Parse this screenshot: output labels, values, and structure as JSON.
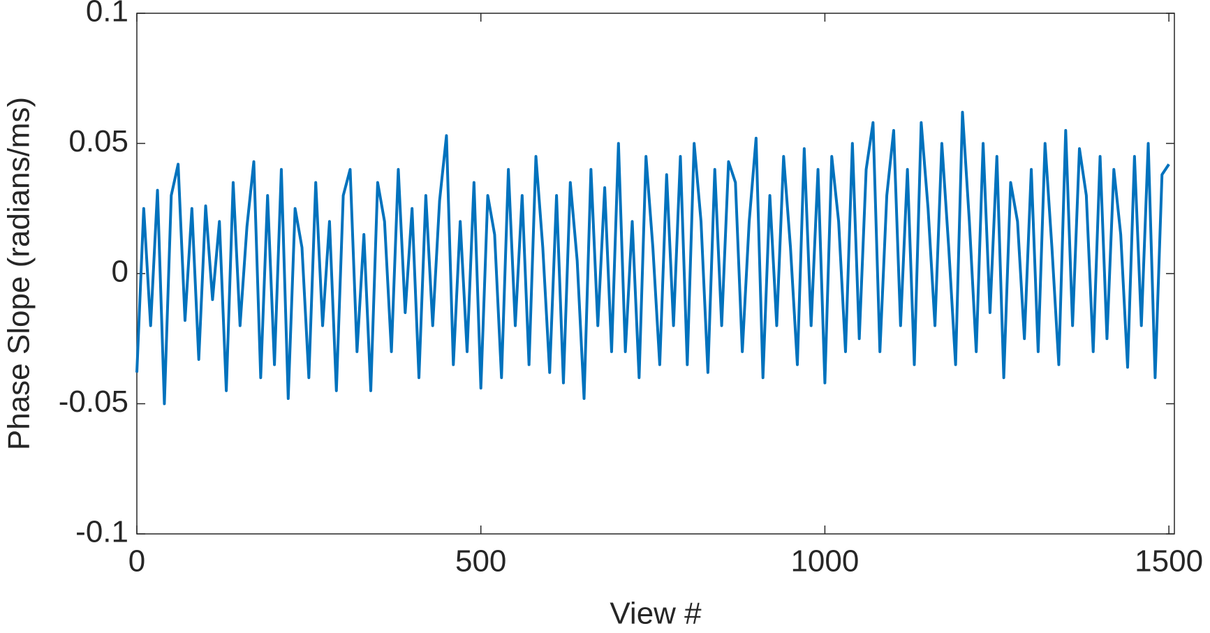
{
  "chart_data": {
    "type": "line",
    "x_label": "View #",
    "y_label": "Phase Slope (radians/ms)",
    "x": [
      0,
      10,
      20,
      30,
      40,
      50,
      60,
      70,
      80,
      90,
      100,
      110,
      120,
      130,
      140,
      150,
      160,
      170,
      180,
      190,
      200,
      210,
      220,
      230,
      240,
      250,
      260,
      270,
      280,
      290,
      300,
      310,
      320,
      330,
      340,
      350,
      360,
      370,
      380,
      390,
      400,
      410,
      420,
      430,
      440,
      450,
      460,
      470,
      480,
      490,
      500,
      510,
      520,
      530,
      540,
      550,
      560,
      570,
      580,
      590,
      600,
      610,
      620,
      630,
      640,
      650,
      660,
      670,
      680,
      690,
      700,
      710,
      720,
      730,
      740,
      750,
      760,
      770,
      780,
      790,
      800,
      810,
      820,
      830,
      840,
      850,
      860,
      870,
      880,
      890,
      900,
      910,
      920,
      930,
      940,
      950,
      960,
      970,
      980,
      990,
      1000,
      1010,
      1020,
      1030,
      1040,
      1050,
      1060,
      1070,
      1080,
      1090,
      1100,
      1110,
      1120,
      1130,
      1140,
      1150,
      1160,
      1170,
      1180,
      1190,
      1200,
      1210,
      1220,
      1230,
      1240,
      1250,
      1260,
      1270,
      1280,
      1290,
      1300,
      1310,
      1320,
      1330,
      1340,
      1350,
      1360,
      1370,
      1380,
      1390,
      1400,
      1410,
      1420,
      1430,
      1440,
      1450,
      1460,
      1470,
      1480,
      1490,
      1500
    ],
    "values": [
      -0.038,
      0.025,
      -0.02,
      0.032,
      -0.05,
      0.03,
      0.042,
      -0.018,
      0.025,
      -0.033,
      0.026,
      -0.01,
      0.02,
      -0.045,
      0.035,
      -0.02,
      0.018,
      0.043,
      -0.04,
      0.03,
      -0.035,
      0.04,
      -0.048,
      0.025,
      0.01,
      -0.04,
      0.035,
      -0.02,
      0.02,
      -0.045,
      0.03,
      0.04,
      -0.03,
      0.015,
      -0.045,
      0.035,
      0.02,
      -0.03,
      0.04,
      -0.015,
      0.025,
      -0.04,
      0.03,
      -0.02,
      0.028,
      0.053,
      -0.035,
      0.02,
      -0.03,
      0.035,
      -0.044,
      0.03,
      0.015,
      -0.04,
      0.04,
      -0.02,
      0.03,
      -0.035,
      0.045,
      0.01,
      -0.038,
      0.03,
      -0.042,
      0.035,
      0.005,
      -0.048,
      0.04,
      -0.02,
      0.033,
      -0.03,
      0.05,
      -0.03,
      0.02,
      -0.04,
      0.045,
      0.01,
      -0.035,
      0.038,
      -0.02,
      0.045,
      -0.035,
      0.05,
      0.02,
      -0.038,
      0.04,
      -0.02,
      0.043,
      0.035,
      -0.03,
      0.02,
      0.052,
      -0.04,
      0.03,
      -0.02,
      0.045,
      0.01,
      -0.035,
      0.048,
      -0.02,
      0.04,
      -0.042,
      0.045,
      0.02,
      -0.03,
      0.05,
      -0.025,
      0.04,
      0.058,
      -0.03,
      0.03,
      0.055,
      -0.02,
      0.04,
      -0.035,
      0.058,
      0.025,
      -0.02,
      0.05,
      0.01,
      -0.035,
      0.062,
      0.02,
      -0.03,
      0.05,
      -0.015,
      0.045,
      -0.04,
      0.035,
      0.02,
      -0.025,
      0.04,
      -0.03,
      0.05,
      0.01,
      -0.035,
      0.055,
      -0.02,
      0.048,
      0.03,
      -0.03,
      0.045,
      -0.025,
      0.04,
      0.015,
      -0.036,
      0.045,
      -0.02,
      0.05,
      -0.04,
      0.038,
      0.042
    ],
    "color": "#0072BD",
    "xlim": [
      0,
      1508
    ],
    "xticks": [
      0,
      500,
      1000,
      1500
    ],
    "ylim": [
      -0.1,
      0.1
    ],
    "yticks": [
      -0.1,
      -0.05,
      0,
      0.05,
      0.1
    ],
    "grid": false
  }
}
